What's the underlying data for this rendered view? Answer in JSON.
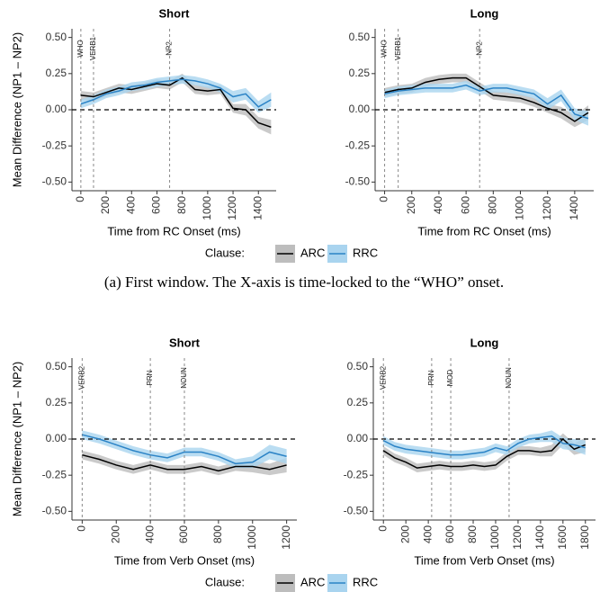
{
  "chart_data": [
    {
      "type": "line",
      "title": "Short",
      "xlabel": "Time from RC Onset (ms)",
      "ylabel": "Mean Difference (NP1 – NP2)",
      "legend_title": "Clause:",
      "x": [
        0,
        100,
        200,
        300,
        400,
        500,
        600,
        700,
        800,
        900,
        1000,
        1100,
        1200,
        1300,
        1400,
        1500
      ],
      "series": [
        {
          "name": "ARC",
          "color": "#000000",
          "band_color": "#bdbdbd",
          "values": [
            0.1,
            0.09,
            0.12,
            0.15,
            0.14,
            0.16,
            0.18,
            0.17,
            0.22,
            0.14,
            0.13,
            0.14,
            0.01,
            0.0,
            -0.09,
            -0.12
          ],
          "error": [
            0.03,
            0.03,
            0.03,
            0.03,
            0.03,
            0.03,
            0.03,
            0.03,
            0.03,
            0.03,
            0.03,
            0.03,
            0.03,
            0.04,
            0.04,
            0.05
          ]
        },
        {
          "name": "RRC",
          "color": "#2b83c6",
          "band_color": "#a9d4ef",
          "values": [
            0.04,
            0.07,
            0.11,
            0.13,
            0.16,
            0.17,
            0.19,
            0.2,
            0.21,
            0.2,
            0.18,
            0.15,
            0.09,
            0.11,
            0.02,
            0.07
          ],
          "error": [
            0.03,
            0.03,
            0.03,
            0.03,
            0.03,
            0.03,
            0.03,
            0.03,
            0.03,
            0.03,
            0.03,
            0.03,
            0.04,
            0.04,
            0.04,
            0.05
          ]
        }
      ],
      "xlim": [
        -70,
        1540
      ],
      "ylim": [
        -0.56,
        0.56
      ],
      "xticks": [
        0,
        200,
        400,
        600,
        800,
        1000,
        1200,
        1400
      ],
      "yticks": [
        {
          "value": 0.5,
          "label": "0.50"
        },
        0.25,
        {
          "value": 0,
          "label": "0.00"
        },
        -0.25,
        {
          "value": -0.5,
          "label": "-0.50"
        }
      ],
      "hline": 0,
      "vlines": [
        {
          "x": 0,
          "label": "WHO"
        },
        {
          "x": 100,
          "label": "VERB1"
        },
        {
          "x": 700,
          "label": "NP2"
        }
      ]
    },
    {
      "type": "line",
      "title": "Long",
      "xlabel": "Time from RC Onset (ms)",
      "x": [
        0,
        100,
        200,
        300,
        400,
        500,
        600,
        700,
        800,
        900,
        1000,
        1100,
        1200,
        1300,
        1400,
        1500
      ],
      "series": [
        {
          "name": "ARC",
          "color": "#000000",
          "band_color": "#bdbdbd",
          "values": [
            0.12,
            0.14,
            0.15,
            0.19,
            0.21,
            0.22,
            0.22,
            0.16,
            0.1,
            0.09,
            0.08,
            0.05,
            0.01,
            -0.02,
            -0.08,
            -0.02
          ],
          "error": [
            0.03,
            0.03,
            0.03,
            0.03,
            0.03,
            0.03,
            0.03,
            0.03,
            0.03,
            0.03,
            0.03,
            0.03,
            0.03,
            0.04,
            0.04,
            0.05
          ]
        },
        {
          "name": "RRC",
          "color": "#2b83c6",
          "band_color": "#a9d4ef",
          "values": [
            0.11,
            0.13,
            0.14,
            0.15,
            0.15,
            0.15,
            0.17,
            0.13,
            0.15,
            0.15,
            0.13,
            0.11,
            0.04,
            0.1,
            -0.03,
            -0.06
          ],
          "error": [
            0.03,
            0.03,
            0.03,
            0.03,
            0.03,
            0.03,
            0.03,
            0.03,
            0.03,
            0.03,
            0.03,
            0.03,
            0.04,
            0.04,
            0.04,
            0.05
          ]
        }
      ],
      "xlim": [
        -70,
        1540
      ],
      "ylim": [
        -0.56,
        0.56
      ],
      "xticks": [
        0,
        200,
        400,
        600,
        800,
        1000,
        1200,
        1400
      ],
      "yticks": [
        {
          "value": 0.5,
          "label": "0.50"
        },
        0.25,
        {
          "value": 0,
          "label": "0.00"
        },
        -0.25,
        {
          "value": -0.5,
          "label": "-0.50"
        }
      ],
      "hline": 0,
      "vlines": [
        {
          "x": 0,
          "label": "WHO"
        },
        {
          "x": 100,
          "label": "VERB1"
        },
        {
          "x": 700,
          "label": "NP2"
        }
      ]
    },
    {
      "type": "line",
      "title": "Short",
      "xlabel": "Time from Verb Onset (ms)",
      "ylabel": "Mean Difference (NP1 – NP2)",
      "legend_title": "Clause:",
      "x": [
        0,
        100,
        200,
        300,
        400,
        500,
        600,
        700,
        800,
        900,
        1000,
        1100,
        1200
      ],
      "series": [
        {
          "name": "ARC",
          "color": "#000000",
          "band_color": "#bdbdbd",
          "values": [
            -0.11,
            -0.14,
            -0.18,
            -0.21,
            -0.18,
            -0.21,
            -0.21,
            -0.19,
            -0.22,
            -0.19,
            -0.19,
            -0.21,
            -0.18
          ],
          "error": [
            0.03,
            0.03,
            0.03,
            0.03,
            0.03,
            0.03,
            0.03,
            0.03,
            0.03,
            0.03,
            0.04,
            0.04,
            0.05
          ]
        },
        {
          "name": "RRC",
          "color": "#2b83c6",
          "band_color": "#a9d4ef",
          "values": [
            0.03,
            0.0,
            -0.04,
            -0.08,
            -0.11,
            -0.13,
            -0.09,
            -0.09,
            -0.12,
            -0.17,
            -0.16,
            -0.09,
            -0.12
          ],
          "error": [
            0.03,
            0.03,
            0.03,
            0.03,
            0.03,
            0.03,
            0.03,
            0.03,
            0.03,
            0.03,
            0.04,
            0.05,
            0.05
          ]
        }
      ],
      "xlim": [
        -60,
        1260
      ],
      "ylim": [
        -0.56,
        0.56
      ],
      "xticks": [
        0,
        200,
        400,
        600,
        800,
        1000,
        1200
      ],
      "yticks": [
        {
          "value": 0.5,
          "label": "0.50"
        },
        0.25,
        {
          "value": 0,
          "label": "0.00"
        },
        -0.25,
        {
          "value": -0.5,
          "label": "-0.50"
        }
      ],
      "hline": 0,
      "vlines": [
        {
          "x": 0,
          "label": "VERB2"
        },
        {
          "x": 400,
          "label": "PRN"
        },
        {
          "x": 600,
          "label": "NOUN"
        }
      ]
    },
    {
      "type": "line",
      "title": "Long",
      "xlabel": "Time from Verb Onset (ms)",
      "x": [
        0,
        100,
        200,
        300,
        400,
        500,
        600,
        700,
        800,
        900,
        1000,
        1100,
        1200,
        1300,
        1400,
        1500,
        1600,
        1700,
        1800
      ],
      "series": [
        {
          "name": "ARC",
          "color": "#000000",
          "band_color": "#bdbdbd",
          "values": [
            -0.08,
            -0.13,
            -0.16,
            -0.2,
            -0.19,
            -0.18,
            -0.19,
            -0.19,
            -0.18,
            -0.19,
            -0.18,
            -0.12,
            -0.08,
            -0.08,
            -0.09,
            -0.08,
            0.0,
            -0.07,
            -0.04
          ],
          "error": [
            0.03,
            0.03,
            0.03,
            0.03,
            0.03,
            0.03,
            0.03,
            0.03,
            0.03,
            0.03,
            0.03,
            0.03,
            0.03,
            0.03,
            0.03,
            0.04,
            0.04,
            0.04,
            0.05
          ]
        },
        {
          "name": "RRC",
          "color": "#2b83c6",
          "band_color": "#a9d4ef",
          "values": [
            -0.01,
            -0.05,
            -0.07,
            -0.08,
            -0.09,
            -0.1,
            -0.11,
            -0.11,
            -0.1,
            -0.09,
            -0.06,
            -0.08,
            -0.03,
            0.0,
            0.01,
            0.02,
            -0.03,
            -0.04,
            -0.06
          ],
          "error": [
            0.03,
            0.03,
            0.03,
            0.03,
            0.03,
            0.03,
            0.03,
            0.03,
            0.03,
            0.03,
            0.03,
            0.03,
            0.03,
            0.03,
            0.03,
            0.04,
            0.04,
            0.04,
            0.05
          ]
        }
      ],
      "xlim": [
        -90,
        1890
      ],
      "ylim": [
        -0.56,
        0.56
      ],
      "xticks": [
        0,
        200,
        400,
        600,
        800,
        1000,
        1200,
        1400,
        1600,
        1800
      ],
      "yticks": [
        {
          "value": 0.5,
          "label": "0.50"
        },
        0.25,
        {
          "value": 0,
          "label": "0.00"
        },
        -0.25,
        {
          "value": -0.5,
          "label": "-0.50"
        }
      ],
      "hline": 0,
      "vlines": [
        {
          "x": 0,
          "label": "VERB2"
        },
        {
          "x": 430,
          "label": "PRN"
        },
        {
          "x": 600,
          "label": "MOD"
        },
        {
          "x": 1120,
          "label": "NOUN"
        }
      ]
    }
  ],
  "caption": "(a) First window. The X-axis is time-locked to the “WHO” onset."
}
